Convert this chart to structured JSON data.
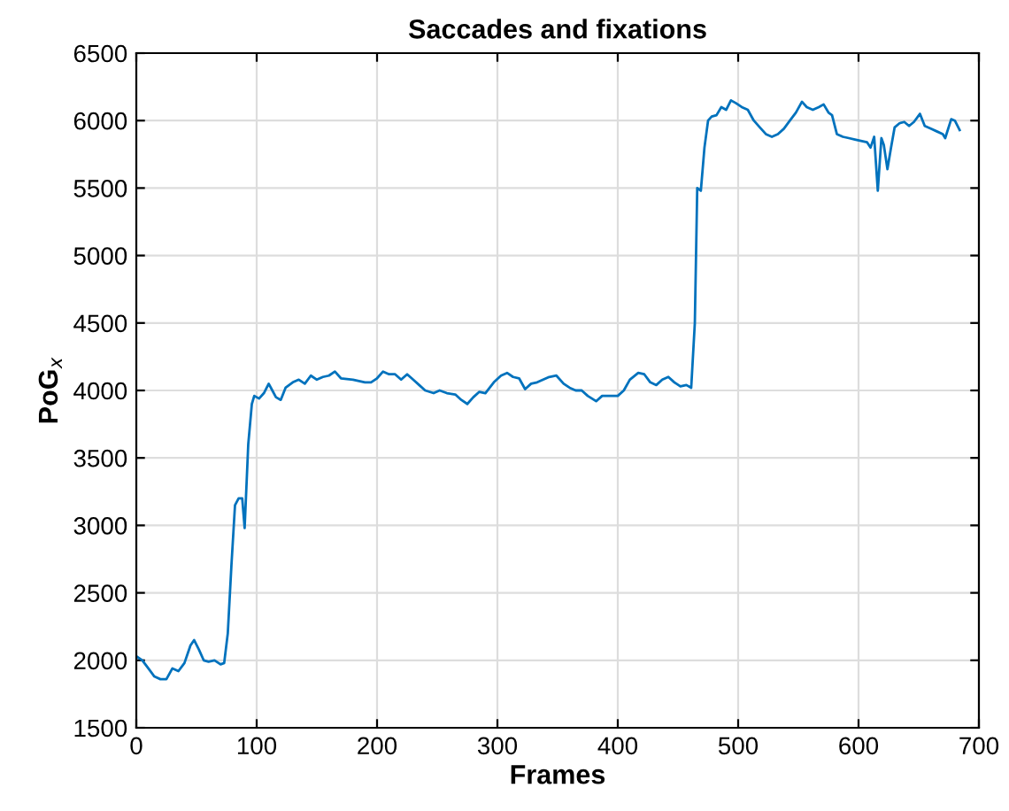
{
  "chart_data": {
    "type": "line",
    "title": "Saccades and fixations",
    "xlabel": "Frames",
    "ylabel": "PoG$_{x}$",
    "xlim": [
      0,
      700
    ],
    "ylim": [
      1500,
      6500
    ],
    "xticks": [
      0,
      100,
      200,
      300,
      400,
      500,
      600,
      700
    ],
    "yticks": [
      1500,
      2000,
      2500,
      3000,
      3500,
      4000,
      4500,
      5000,
      5500,
      6000,
      6500
    ],
    "grid": true,
    "series": [
      {
        "color": "#0072bd",
        "x": [
          0,
          5,
          10,
          15,
          20,
          25,
          30,
          35,
          40,
          45,
          48,
          52,
          56,
          60,
          65,
          70,
          73,
          76,
          79,
          82,
          85,
          88,
          90,
          93,
          96,
          98,
          102,
          106,
          110,
          113,
          116,
          120,
          124,
          130,
          135,
          140,
          145,
          150,
          155,
          160,
          165,
          170,
          180,
          190,
          195,
          200,
          205,
          210,
          215,
          220,
          225,
          230,
          235,
          240,
          247,
          252,
          258,
          265,
          270,
          275,
          280,
          285,
          290,
          297,
          303,
          308,
          313,
          318,
          323,
          328,
          333,
          338,
          343,
          349,
          355,
          360,
          365,
          370,
          375,
          382,
          387,
          392,
          400,
          405,
          410,
          417,
          422,
          427,
          432,
          437,
          442,
          447,
          452,
          457,
          461,
          464,
          466,
          469,
          472,
          475,
          478,
          482,
          486,
          490,
          494,
          498,
          503,
          508,
          513,
          518,
          523,
          528,
          533,
          538,
          543,
          548,
          553,
          557,
          562,
          567,
          571,
          575,
          578,
          582,
          587,
          592,
          597,
          602,
          607,
          610,
          613,
          616,
          619,
          621,
          624,
          627,
          630,
          634,
          638,
          642,
          646,
          651,
          655,
          660,
          665,
          670,
          672,
          677,
          680,
          684
        ],
        "values": [
          2030,
          2000,
          1940,
          1880,
          1860,
          1860,
          1940,
          1920,
          1980,
          2110,
          2150,
          2080,
          2000,
          1990,
          2000,
          1970,
          1980,
          2200,
          2700,
          3150,
          3200,
          3200,
          2980,
          3600,
          3900,
          3960,
          3940,
          3980,
          4050,
          4000,
          3950,
          3930,
          4020,
          4060,
          4080,
          4050,
          4110,
          4080,
          4100,
          4110,
          4140,
          4090,
          4080,
          4060,
          4060,
          4090,
          4140,
          4120,
          4120,
          4080,
          4120,
          4080,
          4040,
          4000,
          3980,
          4000,
          3980,
          3970,
          3930,
          3900,
          3950,
          3990,
          3980,
          4060,
          4110,
          4130,
          4100,
          4090,
          4010,
          4050,
          4060,
          4080,
          4100,
          4110,
          4050,
          4020,
          4000,
          4000,
          3960,
          3920,
          3960,
          3960,
          3960,
          4000,
          4080,
          4130,
          4120,
          4060,
          4040,
          4080,
          4100,
          4060,
          4030,
          4040,
          4020,
          4500,
          5500,
          5480,
          5800,
          6000,
          6030,
          6040,
          6100,
          6080,
          6150,
          6130,
          6100,
          6080,
          6000,
          5950,
          5900,
          5880,
          5900,
          5940,
          6000,
          6060,
          6140,
          6100,
          6080,
          6100,
          6120,
          6060,
          6040,
          5900,
          5880,
          5870,
          5860,
          5850,
          5840,
          5800,
          5880,
          5480,
          5870,
          5820,
          5640,
          5800,
          5950,
          5980,
          5990,
          5960,
          5990,
          6050,
          5960,
          5940,
          5920,
          5900,
          5870,
          6010,
          6000,
          5930
        ]
      }
    ]
  }
}
